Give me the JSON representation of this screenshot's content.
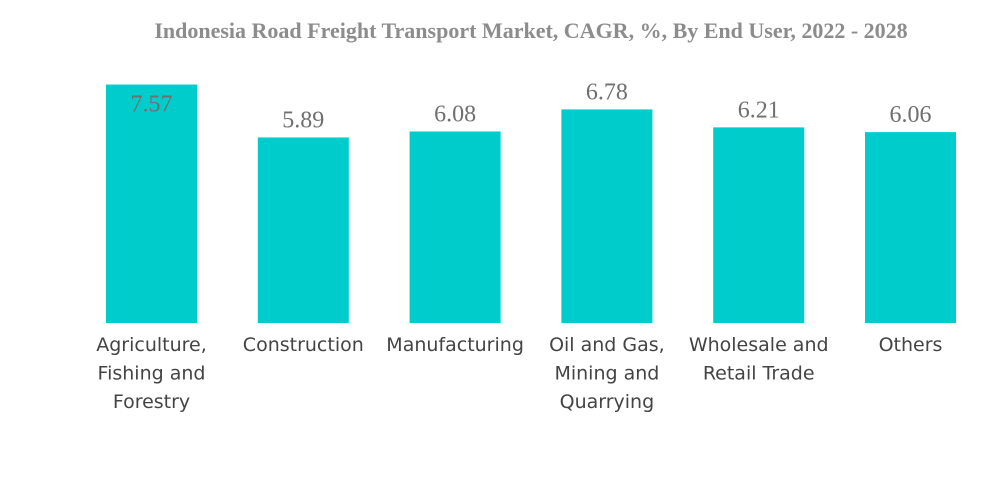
{
  "chart_data": {
    "type": "bar",
    "title": "Indonesia Road Freight Transport Market, CAGR, %, By End User, 2022 - 2028",
    "categories": [
      [
        "Agriculture,",
        "Fishing and",
        "Forestry"
      ],
      [
        "Construction"
      ],
      [
        "Manufacturing"
      ],
      [
        "Oil and Gas,",
        "Mining and",
        "Quarrying"
      ],
      [
        "Wholesale and",
        "Retail Trade"
      ],
      [
        "Others"
      ]
    ],
    "values": [
      7.57,
      5.89,
      6.08,
      6.78,
      6.21,
      6.06
    ],
    "value_labels": [
      "7.57",
      "5.89",
      "6.08",
      "6.78",
      "6.21",
      "6.06"
    ],
    "xlabel": "",
    "ylabel": "",
    "grid": false,
    "legend": "none",
    "bar_color": "#00cccc"
  }
}
